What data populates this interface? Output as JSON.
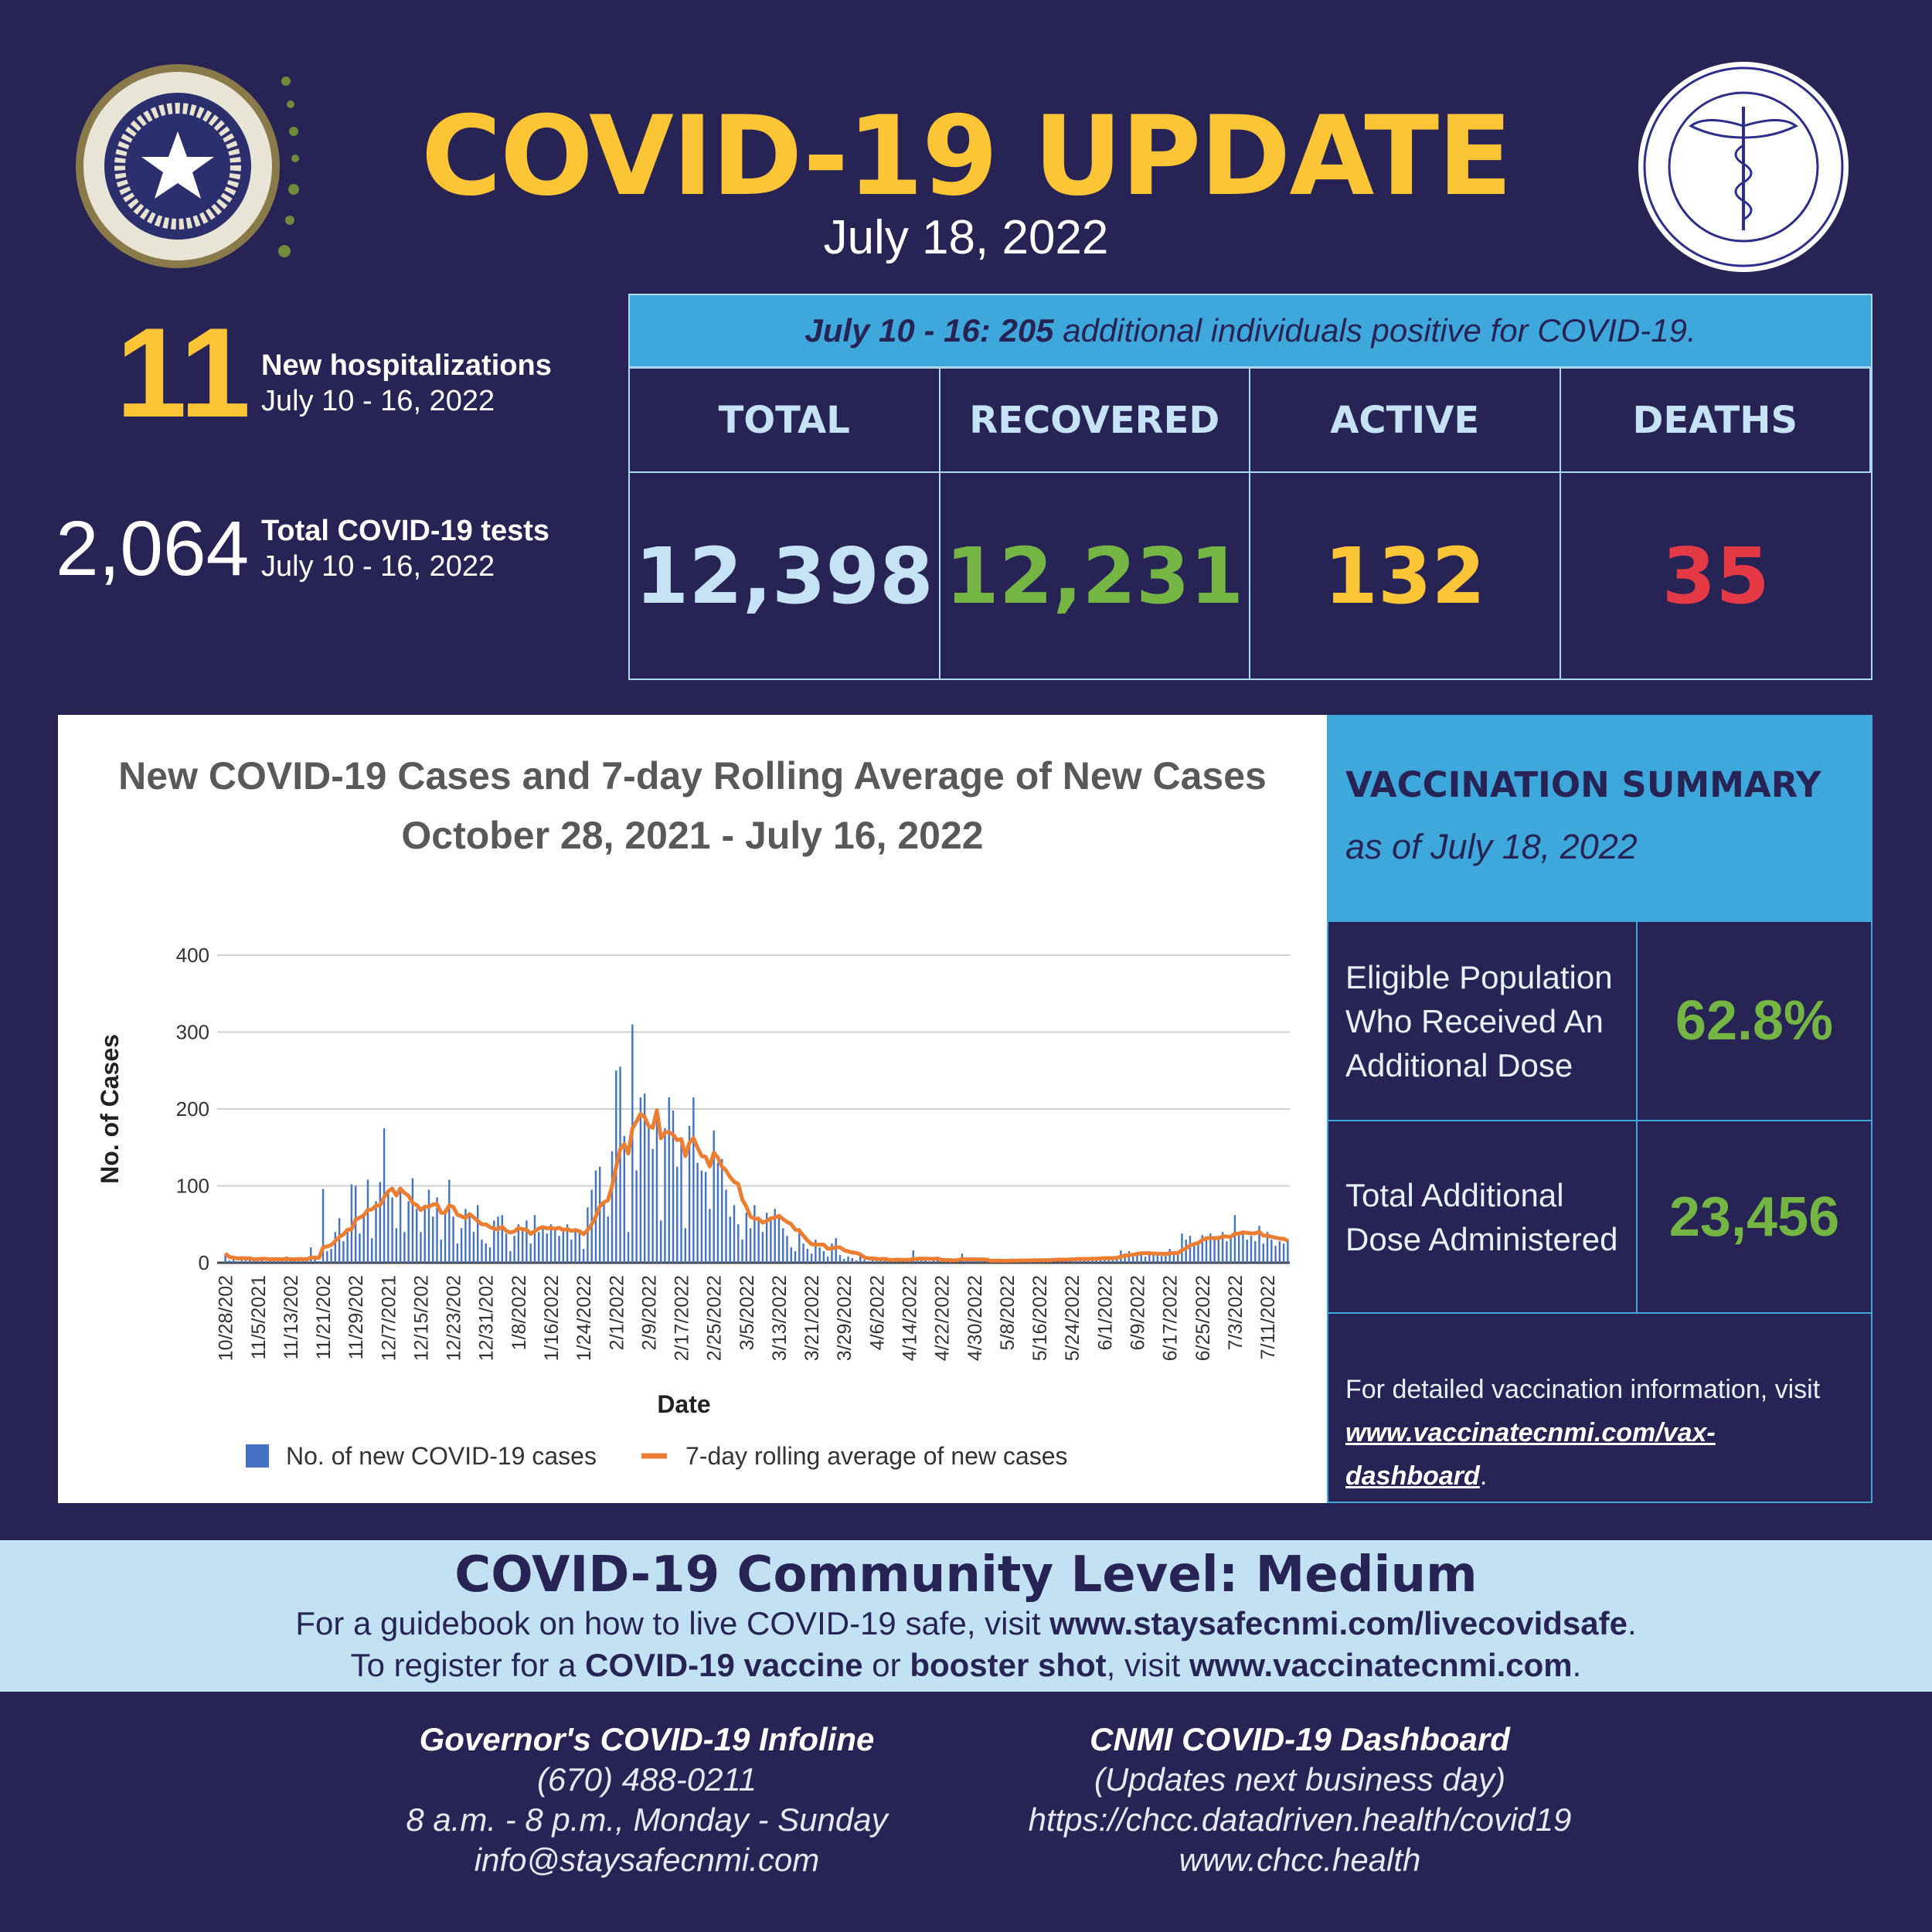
{
  "header": {
    "title": "COVID-19 UPDATE",
    "date": "July 18, 2022"
  },
  "logos": {
    "left_seal": "COMMONWEALTH OF THE NORTHERN MARIANA ISLANDS · OFFICIAL SEAL",
    "right_seal": "COMMONWEALTH HEALTHCARE CORP. · Established October 2011 · COMMONWEALTH OF THE NORTHERN MARIANAS"
  },
  "colors": {
    "background": "#272455",
    "accent_yellow": "#fcc535",
    "accent_blue": "#3ea8dd",
    "green": "#74b543",
    "red": "#e63946",
    "light_blue": "#c6e3f5"
  },
  "hospitalizations": {
    "value": "11",
    "label": "New hospitalizations",
    "period": "July 10 - 16, 2022"
  },
  "tests": {
    "value": "2,064",
    "label": "Total COVID-19 tests",
    "period": "July 10 - 16, 2022"
  },
  "stats": {
    "banner_bold": "July 10 - 16: 205",
    "banner_rest": " additional individuals positive for COVID-19.",
    "columns": [
      {
        "label": "TOTAL",
        "value": "12,398",
        "color": "#c6e3f5"
      },
      {
        "label": "RECOVERED",
        "value": "12,231",
        "color": "#74b543"
      },
      {
        "label": "ACTIVE",
        "value": "132",
        "color": "#fcc535"
      },
      {
        "label": "DEATHS",
        "value": "35",
        "color": "#e63946"
      }
    ]
  },
  "vaccination": {
    "title": "VACCINATION SUMMARY",
    "as_of": "as of July 18, 2022",
    "rows": [
      {
        "label": "Eligible Population Who Received An Additional Dose",
        "value": "62.8%"
      },
      {
        "label": "Total Additional Dose Administered",
        "value": "23,456"
      }
    ],
    "info_text": "For detailed vaccination information, visit",
    "info_link": "www.vaccinatecnmi.com/vax-dashboard",
    "info_end": "."
  },
  "community": {
    "title": "COVID-19 Community Level: Medium",
    "line1_pre": "For a guidebook on how to live COVID-19 safe, visit ",
    "line1_link": "www.staysafecnmi.com/livecovidsafe",
    "line1_end": ".",
    "line2_pre": "To register for a ",
    "line2_b1": "COVID-19 vaccine",
    "line2_mid": " or ",
    "line2_b2": "booster shot",
    "line2_mid2": ", visit ",
    "line2_link": "www.vaccinatecnmi.com",
    "line2_end": "."
  },
  "footer": {
    "infoline": {
      "title": "Governor's COVID-19 Infoline",
      "lines": [
        "(670) 488-0211",
        "8 a.m. - 8 p.m., Monday - Sunday",
        "info@staysafecnmi.com"
      ]
    },
    "dashboard": {
      "title": "CNMI COVID-19 Dashboard",
      "lines": [
        "(Updates next business day)",
        "https://chcc.datadriven.health/covid19",
        "www.chcc.health"
      ]
    }
  },
  "chart_data": {
    "type": "bar",
    "title": "New COVID-19 Cases and 7-day Rolling Average of New Cases",
    "subtitle": "October 28, 2021 - July 16, 2022",
    "xlabel": "Date",
    "ylabel": "No. of Cases",
    "ylim": [
      0,
      400
    ],
    "yticks": [
      0,
      100,
      200,
      300,
      400
    ],
    "grid": true,
    "legend_position": "bottom",
    "start_date": "2021-10-28",
    "end_date": "2022-07-16",
    "tick_every_days": 8,
    "xtick_labels": [
      "10/28/202",
      "11/5/2021",
      "11/13/202",
      "11/21/202",
      "11/29/202",
      "12/7/2021",
      "12/15/202",
      "12/23/202",
      "12/31/202",
      "1/8/2022",
      "1/16/2022",
      "1/24/2022",
      "2/1/2022",
      "2/9/2022",
      "2/17/2022",
      "2/25/2022",
      "3/5/2022",
      "3/13/2022",
      "3/21/2022",
      "3/29/2022",
      "4/6/2022",
      "4/14/2022",
      "4/22/2022",
      "4/30/2022",
      "5/8/2022",
      "5/16/2022",
      "5/24/2022",
      "6/1/2022",
      "6/9/2022",
      "6/17/2022",
      "6/25/2022",
      "7/3/2022",
      "7/11/2022"
    ],
    "series": [
      {
        "name": "No. of new COVID-19 cases",
        "kind": "bar",
        "color": "#4472c4",
        "values": [
          12,
          3,
          5,
          2,
          8,
          4,
          6,
          3,
          5,
          7,
          2,
          4,
          6,
          5,
          3,
          8,
          4,
          2,
          5,
          6,
          3,
          20,
          7,
          2,
          96,
          15,
          18,
          40,
          58,
          28,
          45,
          102,
          100,
          38,
          60,
          108,
          32,
          80,
          105,
          175,
          90,
          85,
          45,
          95,
          40,
          80,
          110,
          70,
          40,
          75,
          95,
          60,
          85,
          30,
          70,
          108,
          60,
          25,
          45,
          70,
          65,
          40,
          75,
          30,
          25,
          20,
          55,
          60,
          62,
          38,
          15,
          35,
          50,
          45,
          55,
          25,
          62,
          40,
          48,
          38,
          50,
          45,
          35,
          42,
          50,
          30,
          45,
          40,
          18,
          72,
          95,
          120,
          125,
          80,
          60,
          145,
          250,
          255,
          165,
          40,
          310,
          120,
          215,
          220,
          175,
          148,
          200,
          55,
          175,
          215,
          198,
          125,
          158,
          45,
          178,
          215,
          130,
          120,
          118,
          70,
          172,
          130,
          135,
          95,
          60,
          75,
          50,
          30,
          65,
          45,
          75,
          60,
          40,
          65,
          55,
          70,
          62,
          45,
          35,
          20,
          15,
          45,
          25,
          18,
          12,
          30,
          20,
          15,
          8,
          25,
          32,
          10,
          5,
          8,
          6,
          3,
          12,
          4,
          2,
          5,
          3,
          4,
          6,
          3,
          2,
          5,
          3,
          4,
          2,
          16,
          3,
          5,
          4,
          2,
          3,
          6,
          2,
          4,
          3,
          2,
          5,
          12,
          3,
          2,
          4,
          3,
          2,
          3,
          1,
          4,
          2,
          3,
          2,
          5,
          2,
          3,
          4,
          2,
          3,
          4,
          5,
          3,
          2,
          6,
          4,
          5,
          3,
          6,
          5,
          4,
          7,
          5,
          4,
          6,
          5,
          8,
          6,
          7,
          5,
          8,
          16,
          12,
          15,
          10,
          14,
          12,
          8,
          15,
          10,
          14,
          9,
          12,
          18,
          10,
          14,
          38,
          30,
          35,
          25,
          28,
          36,
          32,
          38,
          30,
          35,
          40,
          28,
          32,
          62,
          38,
          42,
          30,
          35,
          28,
          48,
          25,
          40,
          30,
          22,
          28,
          25,
          30
        ]
      },
      {
        "name": "7-day rolling average of new cases",
        "kind": "line",
        "color": "#ed7d31",
        "window_days": 7
      }
    ]
  }
}
